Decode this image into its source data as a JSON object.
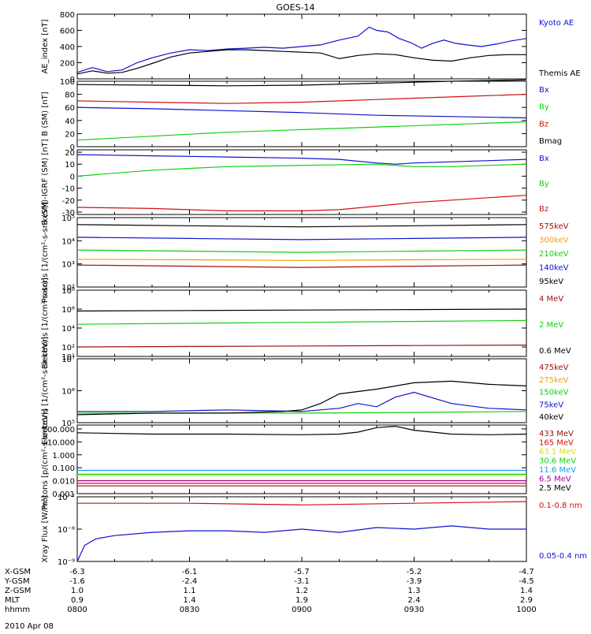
{
  "title": "GOES-14",
  "date_label": "2010 Apr 08",
  "colors": {
    "black": "#000000",
    "blue": "#1010d0",
    "red": "#d01010",
    "green": "#10d010",
    "orange": "#f0a000",
    "cyan": "#10a0f0",
    "yellow": "#e0e000",
    "purple": "#a000a0",
    "darkred": "#a01010"
  },
  "x_axis": {
    "rows": [
      {
        "label": "X-GSM",
        "values": [
          "-6.3",
          "-6.1",
          "-5.7",
          "-5.2",
          "-4.7"
        ]
      },
      {
        "label": "Y-GSM",
        "values": [
          "-1.6",
          "-2.4",
          "-3.1",
          "-3.9",
          "-4.5"
        ]
      },
      {
        "label": "Z-GSM",
        "values": [
          "1.0",
          "1.1",
          "1.2",
          "1.3",
          "1.4"
        ]
      },
      {
        "label": "MLT",
        "values": [
          "0.9",
          "1.4",
          "1.9",
          "2.4",
          "2.9"
        ]
      },
      {
        "label": "hhmm",
        "values": [
          "0800",
          "0830",
          "0900",
          "0930",
          "1000"
        ]
      }
    ]
  },
  "chart_data": [
    {
      "type": "line",
      "ylabel": "AE_index [nT]",
      "ylim": [
        0,
        800
      ],
      "yticks": [
        {
          "v": 0,
          "t": "0"
        },
        {
          "v": 200,
          "t": "200"
        },
        {
          "v": 400,
          "t": "400"
        },
        {
          "v": 600,
          "t": "600"
        },
        {
          "v": 800,
          "t": "800"
        }
      ],
      "log": false,
      "series": [
        {
          "name": "Kyoto AE",
          "color": "blue",
          "x": [
            0,
            4,
            8,
            12,
            16,
            20,
            25,
            30,
            35,
            40,
            45,
            50,
            55,
            60,
            65,
            70,
            75,
            78,
            80,
            83,
            86,
            89,
            92,
            95,
            98,
            101,
            104,
            108,
            112,
            116,
            120
          ],
          "y": [
            80,
            140,
            90,
            110,
            200,
            260,
            320,
            360,
            350,
            370,
            380,
            390,
            380,
            400,
            420,
            480,
            530,
            640,
            600,
            580,
            500,
            450,
            380,
            440,
            480,
            440,
            420,
            400,
            430,
            470,
            500
          ]
        },
        {
          "name": "Themis AE",
          "color": "black",
          "x": [
            0,
            4,
            8,
            12,
            16,
            20,
            25,
            30,
            35,
            40,
            45,
            50,
            55,
            60,
            65,
            70,
            75,
            80,
            85,
            90,
            95,
            100,
            105,
            110,
            115,
            120
          ],
          "y": [
            60,
            100,
            70,
            80,
            130,
            190,
            270,
            320,
            340,
            360,
            360,
            350,
            340,
            330,
            320,
            250,
            290,
            310,
            300,
            260,
            230,
            220,
            260,
            290,
            300,
            300
          ]
        }
      ]
    },
    {
      "type": "line",
      "ylabel": "B (SM) [nT]",
      "ylim": [
        0,
        100
      ],
      "yticks": [
        {
          "v": 0,
          "t": "0"
        },
        {
          "v": 20,
          "t": "20"
        },
        {
          "v": 40,
          "t": "40"
        },
        {
          "v": 60,
          "t": "60"
        },
        {
          "v": 80,
          "t": "80"
        },
        {
          "v": 100,
          "t": "100"
        }
      ],
      "log": false,
      "series": [
        {
          "name": "Bx",
          "color": "blue",
          "x": [
            0,
            20,
            40,
            60,
            80,
            100,
            120
          ],
          "y": [
            60,
            58,
            55,
            52,
            48,
            46,
            44
          ]
        },
        {
          "name": "By",
          "color": "green",
          "x": [
            0,
            20,
            40,
            60,
            80,
            100,
            120
          ],
          "y": [
            10,
            16,
            22,
            26,
            30,
            34,
            38
          ]
        },
        {
          "name": "Bz",
          "color": "red",
          "x": [
            0,
            20,
            40,
            60,
            80,
            100,
            120
          ],
          "y": [
            70,
            68,
            66,
            68,
            72,
            76,
            80
          ]
        },
        {
          "name": "Bmag",
          "color": "black",
          "x": [
            0,
            20,
            40,
            60,
            80,
            100,
            120
          ],
          "y": [
            95,
            94,
            93,
            94,
            97,
            100,
            102
          ]
        }
      ]
    },
    {
      "type": "line",
      "ylabel": "B (SM)-IGRF (SM) [nT]",
      "ylim": [
        -32,
        22
      ],
      "yticks": [
        {
          "v": -30,
          "t": "-30"
        },
        {
          "v": -20,
          "t": "-20"
        },
        {
          "v": -10,
          "t": "-10"
        },
        {
          "v": 0,
          "t": "0"
        },
        {
          "v": 10,
          "t": "10"
        },
        {
          "v": 20,
          "t": "20"
        }
      ],
      "log": false,
      "series": [
        {
          "name": "Bx",
          "color": "blue",
          "x": [
            0,
            20,
            40,
            60,
            70,
            80,
            85,
            90,
            100,
            110,
            120
          ],
          "y": [
            18,
            17,
            16,
            15,
            14,
            11,
            10,
            11,
            12,
            13,
            14
          ]
        },
        {
          "name": "By",
          "color": "green",
          "x": [
            0,
            20,
            40,
            60,
            80,
            90,
            100,
            110,
            120
          ],
          "y": [
            0,
            5,
            8,
            9,
            10,
            8,
            8,
            9,
            10
          ]
        },
        {
          "name": "Bz",
          "color": "red",
          "x": [
            0,
            20,
            40,
            60,
            70,
            80,
            90,
            100,
            110,
            120
          ],
          "y": [
            -26,
            -27,
            -29,
            -29,
            -28,
            -25,
            -22,
            -20,
            -18,
            -16
          ]
        }
      ]
    },
    {
      "type": "line",
      "ylabel": "Protons [1/(cm²-s-sr-keV)]",
      "ylim_exp": [
        2,
        5
      ],
      "yticks": [
        {
          "v": 2,
          "t": "10²"
        },
        {
          "v": 3,
          "t": "10³"
        },
        {
          "v": 4,
          "t": "10⁴"
        },
        {
          "v": 5,
          "t": "10⁵"
        }
      ],
      "log": true,
      "series": [
        {
          "name": "575keV",
          "color": "darkred",
          "x": [
            0,
            30,
            60,
            90,
            120
          ],
          "y": [
            2.95,
            2.9,
            2.85,
            2.9,
            2.95
          ]
        },
        {
          "name": "300keV",
          "color": "orange",
          "x": [
            0,
            30,
            60,
            90,
            120
          ],
          "y": [
            3.2,
            3.18,
            3.15,
            3.18,
            3.2
          ]
        },
        {
          "name": "210keV",
          "color": "green",
          "x": [
            0,
            30,
            60,
            90,
            120
          ],
          "y": [
            3.6,
            3.55,
            3.5,
            3.55,
            3.6
          ]
        },
        {
          "name": "140keV",
          "color": "blue",
          "x": [
            0,
            30,
            60,
            90,
            120
          ],
          "y": [
            4.15,
            4.1,
            4.05,
            4.1,
            4.15
          ]
        },
        {
          "name": "95keV",
          "color": "black",
          "x": [
            0,
            30,
            60,
            90,
            120
          ],
          "y": [
            4.7,
            4.65,
            4.6,
            4.65,
            4.7
          ]
        }
      ]
    },
    {
      "type": "line",
      "ylabel": "Electrons [1/(cm²-s-sr)]",
      "ylim_exp": [
        1,
        8
      ],
      "yticks": [
        {
          "v": 1,
          "t": "10¹"
        },
        {
          "v": 2,
          "t": "10²"
        },
        {
          "v": 4,
          "t": "10⁴"
        },
        {
          "v": 6,
          "t": "10⁶"
        },
        {
          "v": 8,
          "t": "10⁸"
        }
      ],
      "log": true,
      "series": [
        {
          "name": "4 MeV",
          "color": "darkred",
          "x": [
            0,
            30,
            60,
            90,
            120
          ],
          "y": [
            2.0,
            2.05,
            2.1,
            2.15,
            2.2
          ]
        },
        {
          "name": "2 MeV",
          "color": "green",
          "x": [
            0,
            30,
            60,
            90,
            120
          ],
          "y": [
            4.4,
            4.5,
            4.6,
            4.7,
            4.8
          ]
        },
        {
          "name": "0.6 MeV",
          "color": "black",
          "x": [
            0,
            30,
            60,
            90,
            120
          ],
          "y": [
            5.8,
            5.85,
            5.9,
            5.95,
            6.0
          ]
        }
      ]
    },
    {
      "type": "line",
      "ylabel": "Electrons [1/(cm²-s-sr-keV)]",
      "ylim_exp": [
        5,
        7
      ],
      "yticks": [
        {
          "v": 5,
          "t": "10⁵"
        },
        {
          "v": 6,
          "t": "10⁶"
        },
        {
          "v": 7,
          "t": "10⁷"
        }
      ],
      "log": true,
      "series": [
        {
          "name": "475keV",
          "color": "darkred",
          "x": [],
          "y": []
        },
        {
          "name": "275keV",
          "color": "orange",
          "x": [],
          "y": []
        },
        {
          "name": "150keV",
          "color": "green",
          "x": [
            0,
            30,
            60,
            90,
            120
          ],
          "y": [
            5.3,
            5.3,
            5.3,
            5.32,
            5.35
          ]
        },
        {
          "name": "75keV",
          "color": "blue",
          "x": [
            0,
            20,
            40,
            60,
            70,
            75,
            80,
            85,
            90,
            100,
            110,
            120
          ],
          "y": [
            5.35,
            5.35,
            5.4,
            5.35,
            5.45,
            5.6,
            5.5,
            5.8,
            5.95,
            5.6,
            5.45,
            5.4
          ]
        },
        {
          "name": "40keV",
          "color": "black",
          "x": [
            0,
            20,
            40,
            55,
            60,
            65,
            70,
            80,
            90,
            100,
            110,
            120
          ],
          "y": [
            5.25,
            5.3,
            5.3,
            5.35,
            5.4,
            5.6,
            5.9,
            6.05,
            6.25,
            6.3,
            6.2,
            6.15
          ]
        }
      ]
    },
    {
      "type": "line",
      "ylabel": "Protons [p/(cm²-s-sr-keV)]",
      "ylim_exp": [
        -3,
        2.3
      ],
      "yticks": [
        {
          "v": -3,
          "t": "0.001"
        },
        {
          "v": -2,
          "t": "0.010"
        },
        {
          "v": -1,
          "t": "0.100"
        },
        {
          "v": 0,
          "t": "1.000"
        },
        {
          "v": 1,
          "t": "10.000"
        },
        {
          "v": 2,
          "t": "100.000"
        }
      ],
      "log": true,
      "series": [
        {
          "name": "433 MeV",
          "color": "darkred",
          "x": [
            0,
            60,
            120
          ],
          "y": [
            -2.4,
            -2.4,
            -2.4
          ]
        },
        {
          "name": "165 MeV",
          "color": "red",
          "x": [
            0,
            60,
            120
          ],
          "y": [
            -2.2,
            -2.2,
            -2.2
          ]
        },
        {
          "name": "63.1 MeV",
          "color": "yellow",
          "x": [
            0,
            60,
            120
          ],
          "y": [
            -1.6,
            -1.6,
            -1.6
          ]
        },
        {
          "name": "30.6 MeV",
          "color": "green",
          "x": [
            0,
            60,
            120
          ],
          "y": [
            -1.5,
            -1.5,
            -1.5
          ]
        },
        {
          "name": "11.6 MeV",
          "color": "cyan",
          "x": [
            0,
            60,
            120
          ],
          "y": [
            -1.2,
            -1.2,
            -1.2
          ]
        },
        {
          "name": "6.5 MeV",
          "color": "purple",
          "x": [
            0,
            60,
            120
          ],
          "y": [
            -2.0,
            -2.0,
            -2.0
          ]
        },
        {
          "name": "2.5 MeV",
          "color": "black",
          "x": [
            0,
            20,
            40,
            60,
            70,
            75,
            80,
            85,
            90,
            100,
            110,
            120
          ],
          "y": [
            1.7,
            1.6,
            1.6,
            1.55,
            1.6,
            1.75,
            2.1,
            2.2,
            1.9,
            1.6,
            1.55,
            1.6
          ]
        }
      ]
    },
    {
      "type": "line",
      "ylabel": "Xray Flux [W/m²]",
      "ylim_exp": [
        -9,
        -7
      ],
      "yticks": [
        {
          "v": -9,
          "t": "10⁻⁹"
        },
        {
          "v": -8,
          "t": "10⁻⁸"
        },
        {
          "v": -7,
          "t": "10⁻⁷"
        }
      ],
      "log": true,
      "series": [
        {
          "name": "0.1-0.8 nm",
          "color": "red",
          "x": [
            0,
            30,
            60,
            90,
            120
          ],
          "y": [
            -7.2,
            -7.2,
            -7.25,
            -7.2,
            -7.15
          ]
        },
        {
          "name": "0.05-0.4 nm",
          "color": "blue",
          "x": [
            0,
            2,
            5,
            10,
            20,
            30,
            40,
            50,
            60,
            70,
            80,
            90,
            100,
            110,
            120
          ],
          "y": [
            -9.0,
            -8.5,
            -8.3,
            -8.2,
            -8.1,
            -8.05,
            -8.05,
            -8.1,
            -8.0,
            -8.1,
            -7.95,
            -8.0,
            -7.9,
            -8.0,
            -8.0
          ]
        }
      ]
    }
  ]
}
